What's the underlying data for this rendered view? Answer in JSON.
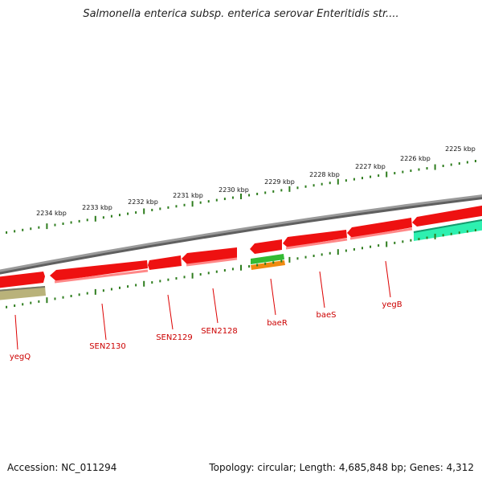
{
  "title": "Salmonella enterica subsp. enterica serovar Enteritidis str....",
  "accession_text": "Accession: NC_011294",
  "summary_text": "Topology: circular; Length: 4,685,848 bp; Genes: 4,312",
  "colors": {
    "backbone": "#8a8a8a",
    "tick": "#2e7d1e",
    "gene_red": "#ee1111",
    "gene_red_light": "#ff7777",
    "label_red": "#cc0000",
    "gene_olive": "#b9b27a",
    "gene_cyan": "#2ef0b0",
    "gene_green": "#33bb33",
    "gene_orange": "#f08a10"
  },
  "kbp_labels": [
    "2225 kbp",
    "2226 kbp",
    "2227 kbp",
    "2228 kbp",
    "2229 kbp",
    "2230 kbp",
    "2231 kbp",
    "2232 kbp",
    "2233 kbp",
    "2234 kbp"
  ],
  "gene_labels": [
    "yegQ",
    "SEN2130",
    "SEN2129",
    "SEN2128",
    "baeR",
    "baeS",
    "yegB"
  ]
}
